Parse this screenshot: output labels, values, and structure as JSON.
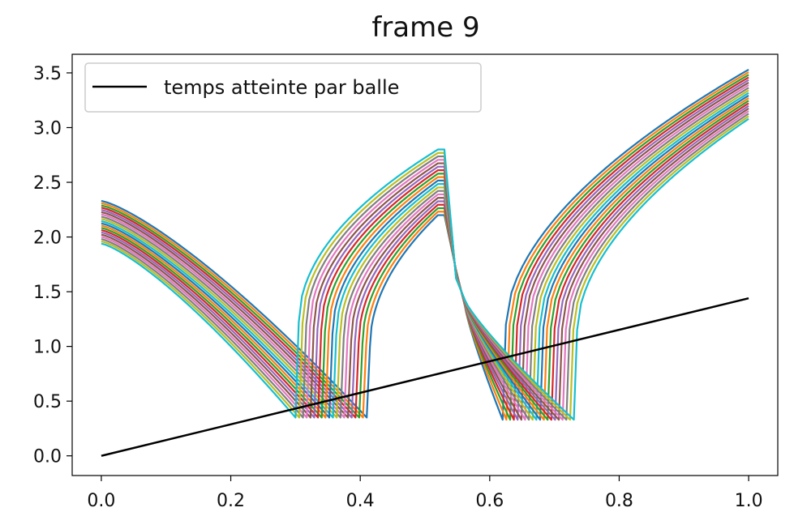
{
  "chart_data": {
    "type": "line",
    "title": "frame 9",
    "xlabel": "",
    "ylabel": "",
    "xlim": [
      -0.045,
      1.045
    ],
    "ylim": [
      -0.18,
      3.67
    ],
    "x_ticks": [
      0.0,
      0.2,
      0.4,
      0.6,
      0.8,
      1.0
    ],
    "x_tick_labels": [
      "0.0",
      "0.2",
      "0.4",
      "0.6",
      "0.8",
      "1.0"
    ],
    "y_ticks": [
      0.0,
      0.5,
      1.0,
      1.5,
      2.0,
      2.5,
      3.0,
      3.5
    ],
    "y_tick_labels": [
      "0.0",
      "0.5",
      "1.0",
      "1.5",
      "2.0",
      "2.5",
      "3.0",
      "3.5"
    ],
    "grid": false,
    "legend": {
      "position": "top-left",
      "entries": [
        {
          "label": "temps atteinte par balle",
          "color": "#000000"
        }
      ]
    },
    "reference_line": {
      "name": "temps atteinte par balle",
      "color": "#000000",
      "x": [
        0.0,
        1.0
      ],
      "y": [
        0.0,
        1.44
      ]
    },
    "curve_family": {
      "count": 20,
      "colors": [
        "#1f77b4",
        "#ff7f0e",
        "#2ca02c",
        "#d62728",
        "#9467bd",
        "#8c564b",
        "#e377c2",
        "#7f7f7f",
        "#bcbd22",
        "#17becf"
      ],
      "y_at_x0": {
        "first": 2.33,
        "last": 1.94
      },
      "first_drop_x": {
        "first": 0.41,
        "last": 0.3
      },
      "first_drop_min_y": 0.35,
      "peak_x": 0.53,
      "peak_y": {
        "first": 2.2,
        "last": 2.8
      },
      "second_drop_x": {
        "first": 0.62,
        "last": 0.73
      },
      "second_drop_min_y": 0.33,
      "y_at_x1": {
        "first": 3.53,
        "last": 3.08
      }
    }
  }
}
